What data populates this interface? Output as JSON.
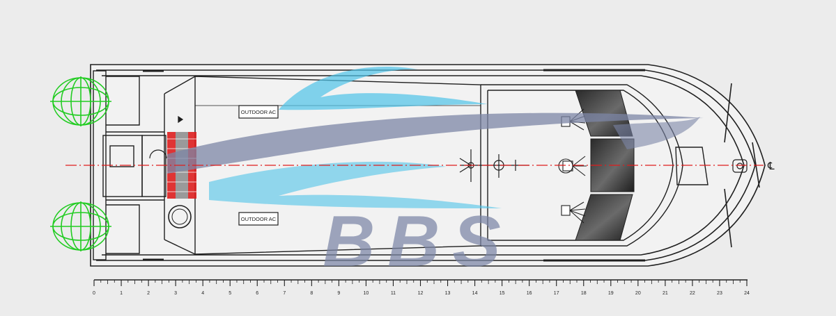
{
  "labels": {
    "outdoor_ac_top": "OUTDOOR AC",
    "outdoor_ac_bottom": "OUTDOOR AC",
    "watermark": "BBS",
    "centerline_symbol": "℄"
  },
  "scale": {
    "ticks": [
      "0",
      "1",
      "2",
      "3",
      "4",
      "5",
      "6",
      "7",
      "8",
      "9",
      "10",
      "11",
      "12",
      "13",
      "14",
      "15",
      "16",
      "17",
      "18",
      "19",
      "20",
      "21",
      "22",
      "23",
      "24"
    ]
  },
  "colors": {
    "background": "#ececec",
    "hull_line": "#1f1f1f",
    "centerline": "#e01c1c",
    "propeller": "#22cc22",
    "highlight": "#dd1f1f",
    "watermark_blue": "#4fc3e8",
    "watermark_gray": "#7c86a6"
  }
}
